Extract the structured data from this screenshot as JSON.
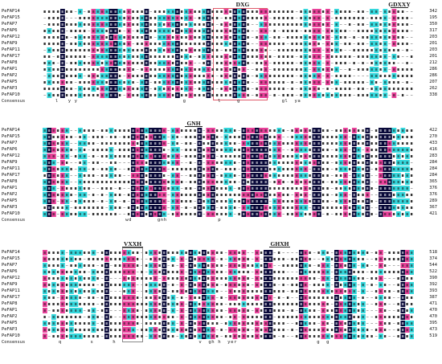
{
  "blocks": [
    {
      "names": [
        "PeFAP14",
        "PeFAP15",
        "PeFAP7",
        "PeFAP6",
        "PeFAP12",
        "PeFAP9",
        "PeFAP11",
        "PeFAP17",
        "PeFAP8",
        "PeFAP1",
        "PeFAP2",
        "PeFAP5",
        "PeFAP3",
        "PeFAP10"
      ],
      "numbers": [
        "342",
        "195",
        "350",
        "317",
        "203",
        "201",
        "203",
        "201",
        "212",
        "286",
        "286",
        "207",
        "262",
        "338"
      ],
      "consensus_label": "Consensus",
      "consensus_text": "    l   y y                                 g          l     g             gl  ya"
    },
    {
      "names": [
        "PeFAP14",
        "PeFAP15",
        "PeFAP7",
        "PeFAP6",
        "PeFAP12",
        "PeFAP9",
        "PeFAP11",
        "PeFAP17",
        "PeFAP8",
        "PeFAP1",
        "PeFAP2",
        "PeFAP5",
        "PeFAP3",
        "PeFAP10"
      ],
      "numbers": [
        "422",
        "270",
        "433",
        "416",
        "283",
        "284",
        "284",
        "284",
        "365",
        "376",
        "376",
        "289",
        "367",
        "421"
      ],
      "consensus_label": "Consensus",
      "consensus_text": "                          wd        gnh                p                                 "
    },
    {
      "names": [
        "PeFAP14",
        "PeFAP15",
        "PeFAP7",
        "PeFAP6",
        "PeFAP12",
        "PeFAP9",
        "PeFAP11",
        "PeFAP17",
        "PeFAP8",
        "PeFAP1",
        "PeFAP2",
        "PeFAP5",
        "PeFAP3",
        "PeFAP10"
      ],
      "numbers": [
        "518",
        "374",
        "544",
        "522",
        "390",
        "392",
        "393",
        "387",
        "471",
        "470",
        "470",
        "395",
        "473",
        "519"
      ],
      "consensus_label": "Consensus",
      "consensus_text": "     q         s      h                          v  gh h  yer                         g  g"
    }
  ],
  "motifs": {
    "dxg": "DXG",
    "gdxxy": "GDXXY",
    "gnh": "GNH",
    "vxxh": "VXXH",
    "ghxh": "GHXH"
  },
  "colors": {
    "identical": "#0a0a3a",
    "high": "#e8419a",
    "similar": "#34d7dc",
    "gap": "#9a9a9a",
    "box": "#e05a6a"
  }
}
